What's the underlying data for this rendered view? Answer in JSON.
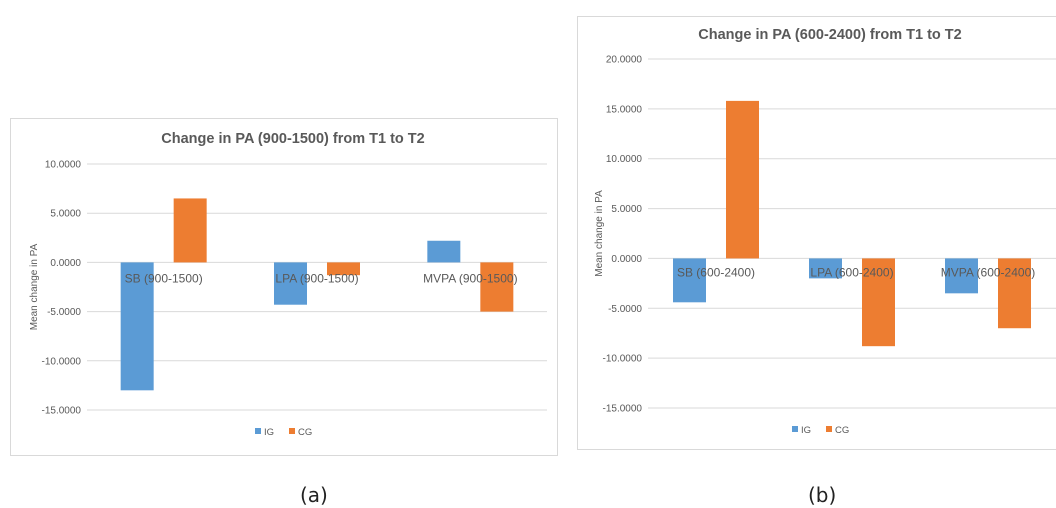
{
  "captions": {
    "a": "(a)",
    "b": "(b)"
  },
  "colors": {
    "IG": "#5b9bd5",
    "CG": "#ed7d31",
    "gridline": "#d9d9d9",
    "text": "#595959"
  },
  "chart_data": [
    {
      "type": "bar",
      "title": "Change in PA (900-1500)  from T1 to T2",
      "ylabel": "Mean change in PA",
      "xlabel": "",
      "categories": [
        "SB (900-1500)",
        "LPA (900-1500)",
        "MVPA (900-1500)"
      ],
      "series": [
        {
          "name": "IG",
          "values": [
            -13.0,
            -4.3,
            2.2
          ]
        },
        {
          "name": "CG",
          "values": [
            6.5,
            -1.3,
            -5.0
          ]
        }
      ],
      "ylim": [
        -15,
        10
      ],
      "yticks": [
        -15,
        -10,
        -5,
        0,
        5,
        10
      ],
      "ytick_labels": [
        "-15.0000",
        "-10.0000",
        "-5.0000",
        "0.0000",
        "5.0000",
        "10.0000"
      ],
      "grid": true,
      "legend": "bottom"
    },
    {
      "type": "bar",
      "title": "Change in PA (600-2400) from T1 to T2",
      "ylabel": "Mean change in PA",
      "xlabel": "",
      "categories": [
        "SB (600-2400)",
        "LPA (600-2400)",
        "MVPA (600-2400)"
      ],
      "series": [
        {
          "name": "IG",
          "values": [
            -4.4,
            -2.0,
            -3.5
          ]
        },
        {
          "name": "CG",
          "values": [
            15.8,
            -8.8,
            -7.0
          ]
        }
      ],
      "ylim": [
        -15,
        20
      ],
      "yticks": [
        -15,
        -10,
        -5,
        0,
        5,
        10,
        15,
        20
      ],
      "ytick_labels": [
        "-15.0000",
        "-10.0000",
        "-5.0000",
        "0.0000",
        "5.0000",
        "10.0000",
        "15.0000",
        "20.0000"
      ],
      "grid": true,
      "legend": "bottom"
    }
  ]
}
